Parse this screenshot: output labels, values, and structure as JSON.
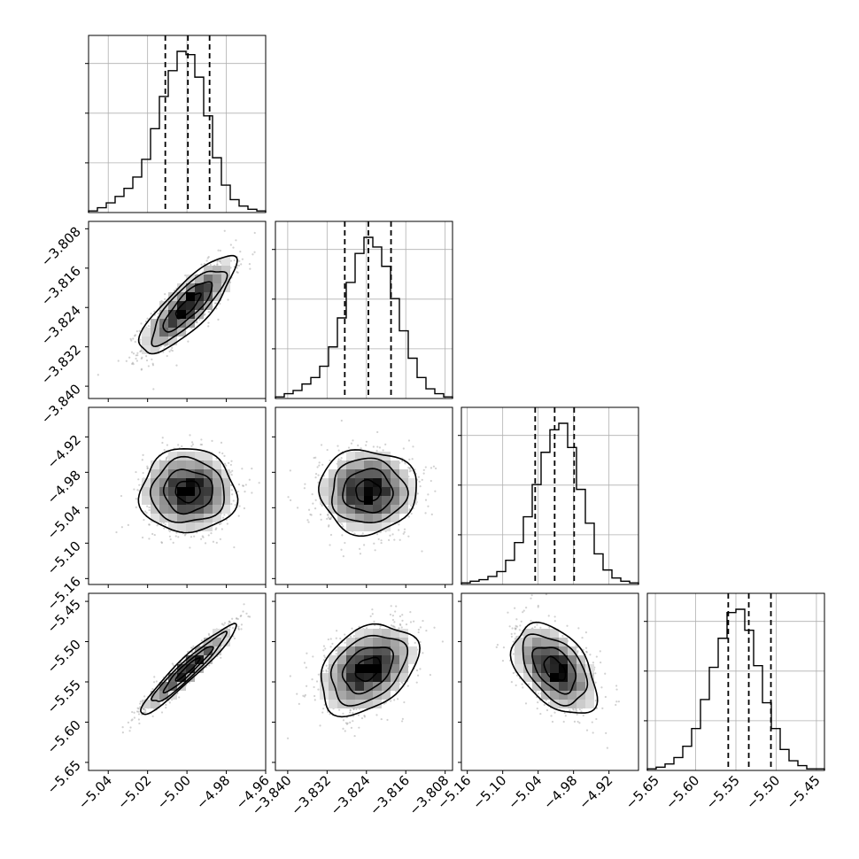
{
  "chart_data": {
    "type": "corner",
    "title": "",
    "grid": true,
    "colors": {
      "line": "#000000",
      "grid": "#b0b0b0",
      "scatter": "#9a9a9a"
    },
    "parameters": [
      {
        "range": [
          -5.05,
          -4.96
        ],
        "ticks": [
          -5.04,
          -5.02,
          -5.0,
          -4.98,
          -4.96
        ],
        "tick_labels": [
          "−5.04",
          "−5.02",
          "−5.00",
          "−4.98",
          "−4.96"
        ],
        "quantiles": [
          -5.011,
          -4.9995,
          -4.9885
        ]
      },
      {
        "range": [
          -3.8425,
          -3.8065
        ],
        "ticks": [
          -3.84,
          -3.832,
          -3.824,
          -3.816,
          -3.808
        ],
        "tick_labels": [
          "−3.840",
          "−3.832",
          "−3.824",
          "−3.816",
          "−3.808"
        ],
        "quantiles": [
          -3.8284,
          -3.8236,
          -3.819
        ]
      },
      {
        "range": [
          -5.17,
          -4.87
        ],
        "ticks": [
          -5.16,
          -5.1,
          -5.04,
          -4.98,
          -4.92
        ],
        "tick_labels": [
          "−5.16",
          "−5.10",
          "−5.04",
          "−4.98",
          "−4.92"
        ],
        "quantiles": [
          -5.045,
          -5.012,
          -4.979
        ]
      },
      {
        "range": [
          -5.66,
          -5.44
        ],
        "ticks": [
          -5.65,
          -5.6,
          -5.55,
          -5.5,
          -5.45
        ],
        "tick_labels": [
          "−5.65",
          "−5.60",
          "−5.55",
          "−5.50",
          "−5.45"
        ],
        "quantiles": [
          -5.5595,
          -5.534,
          -5.5065
        ]
      }
    ],
    "histograms": [
      {
        "bin_start": -5.05,
        "bin_width": 0.0045,
        "counts": [
          1,
          3,
          6,
          10,
          15,
          22,
          33,
          52,
          72,
          88,
          100,
          98,
          84,
          60,
          34,
          17,
          8,
          4,
          2,
          1
        ]
      },
      {
        "bin_start": -3.8425,
        "bin_width": 0.0018,
        "counts": [
          1,
          3,
          5,
          9,
          13,
          20,
          32,
          50,
          72,
          90,
          100,
          94,
          82,
          62,
          42,
          25,
          13,
          6,
          3,
          1
        ]
      },
      {
        "bin_start": -5.17,
        "bin_width": 0.015,
        "counts": [
          1,
          2,
          3,
          5,
          8,
          15,
          26,
          42,
          62,
          82,
          96,
          100,
          85,
          59,
          38,
          19,
          9,
          4,
          2,
          1
        ]
      },
      {
        "bin_start": -5.66,
        "bin_width": 0.011,
        "counts": [
          1,
          2,
          4,
          8,
          15,
          26,
          44,
          64,
          82,
          98,
          100,
          87,
          65,
          42,
          26,
          13,
          6,
          3,
          1,
          1
        ]
      }
    ],
    "pairs": [
      {
        "x": 0,
        "y": 1,
        "mean": [
          -4.9995,
          -3.8237
        ],
        "sd": [
          0.0113,
          0.0046
        ],
        "rho": 0.82
      },
      {
        "x": 0,
        "y": 2,
        "mean": [
          -4.9995,
          -5.012
        ],
        "sd": [
          0.0113,
          0.033
        ],
        "rho": 0.0
      },
      {
        "x": 1,
        "y": 2,
        "mean": [
          -3.8237,
          -5.012
        ],
        "sd": [
          0.0046,
          0.033
        ],
        "rho": 0.0
      },
      {
        "x": 0,
        "y": 3,
        "mean": [
          -4.9995,
          -5.534
        ],
        "sd": [
          0.0113,
          0.026
        ],
        "rho": 0.95
      },
      {
        "x": 1,
        "y": 3,
        "mean": [
          -3.8237,
          -5.534
        ],
        "sd": [
          0.0046,
          0.026
        ],
        "rho": 0.35
      },
      {
        "x": 2,
        "y": 3,
        "mean": [
          -5.012,
          -5.534
        ],
        "sd": [
          0.033,
          0.026
        ],
        "rho": -0.45
      }
    ]
  }
}
